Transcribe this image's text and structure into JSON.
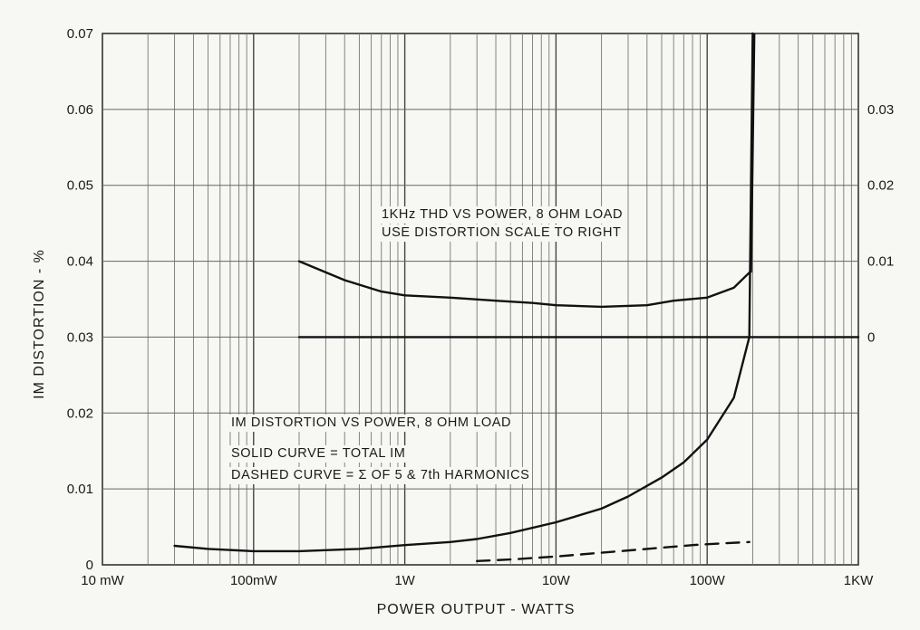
{
  "chart_data": {
    "type": "line",
    "title": "",
    "xlabel": "POWER OUTPUT - WATTS",
    "ylabel": "IM DISTORTION - %",
    "x_scale": "log",
    "xlim": [
      0.01,
      1000
    ],
    "ylim": [
      0,
      0.07
    ],
    "x_tick_labels": [
      "10 mW",
      "100mW",
      "1W",
      "10W",
      "100W",
      "1KW"
    ],
    "y_tick_labels": [
      "0",
      "0.01",
      "0.02",
      "0.03",
      "0.04",
      "0.05",
      "0.06",
      "0.07"
    ],
    "right_axis": {
      "tick_labels": [
        "0",
        "0.01",
        "0.02",
        "0.03"
      ],
      "ylim": [
        -0.03,
        0.04
      ]
    },
    "grid": true,
    "annotations": {
      "thd_line1": "1KHz THD VS POWER, 8 OHM LOAD",
      "thd_line2": "USE DISTORTION SCALE TO RIGHT",
      "im_line1": "IM DISTORTION VS POWER, 8 OHM LOAD",
      "im_line2": "SOLID CURVE = TOTAL IM",
      "im_line3": "DASHED CURVE = Σ OF 5 & 7th HARMONICS"
    },
    "series": [
      {
        "axis": "right",
        "style": "solid",
        "x": [
          0.2,
          0.4,
          0.7,
          1,
          2,
          4,
          7,
          10,
          20,
          40,
          60,
          100,
          150,
          190
        ],
        "y": [
          0.01,
          0.0075,
          0.006,
          0.0055,
          0.0052,
          0.0048,
          0.0045,
          0.0042,
          0.004,
          0.0042,
          0.0048,
          0.0052,
          0.0065,
          0.0085
        ]
      },
      {
        "axis": "right",
        "style": "solid",
        "x": [
          0.2,
          200,
          1000
        ],
        "y": [
          0,
          0,
          0
        ]
      },
      {
        "axis": "left",
        "style": "solid",
        "x": [
          0.03,
          0.05,
          0.1,
          0.2,
          0.5,
          1,
          2,
          3,
          5,
          10,
          20,
          30,
          50,
          70,
          100,
          150,
          190,
          200
        ],
        "y": [
          0.0025,
          0.0021,
          0.0018,
          0.0018,
          0.0021,
          0.0026,
          0.003,
          0.0034,
          0.0042,
          0.0056,
          0.0074,
          0.009,
          0.0115,
          0.0135,
          0.0165,
          0.022,
          0.03,
          0.07
        ]
      },
      {
        "axis": "left",
        "style": "dashed",
        "x": [
          3,
          5,
          10,
          20,
          40,
          80,
          120,
          190
        ],
        "y": [
          0.0005,
          0.0007,
          0.0011,
          0.0016,
          0.0021,
          0.0026,
          0.0028,
          0.003
        ]
      }
    ]
  }
}
